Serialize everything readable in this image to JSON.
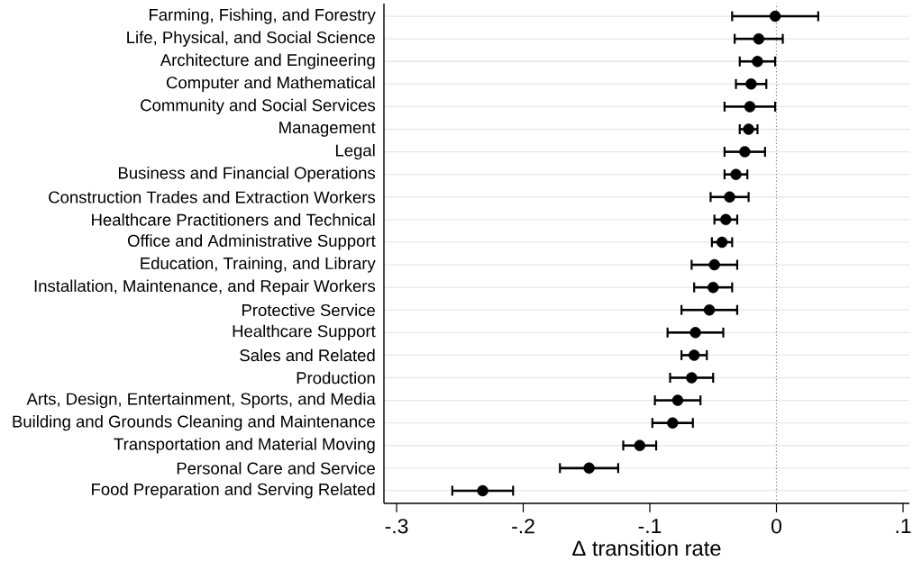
{
  "chart_data": {
    "type": "scatter",
    "orientation": "horizontal",
    "xlabel": "Δ transition rate",
    "categories": [
      "Farming, Fishing, and Forestry",
      "Life, Physical, and Social Science",
      "Architecture and Engineering",
      "Computer and Mathematical",
      "Community and Social Services",
      "Management",
      "Legal",
      "Business and Financial Operations",
      "Construction Trades and Extraction Workers",
      "Healthcare Practitioners and Technical",
      "Office and Administrative Support",
      "Education, Training, and Library",
      "Installation, Maintenance, and Repair Workers",
      "Protective Service",
      "Healthcare Support",
      "Sales and Related",
      "Production",
      "Arts, Design, Entertainment, Sports, and Media",
      "Building and Grounds Cleaning and Maintenance",
      "Transportation and Material Moving",
      "Personal Care and Service",
      "Food Preparation and Serving Related"
    ],
    "values": [
      -0.001,
      -0.014,
      -0.015,
      -0.02,
      -0.021,
      -0.022,
      -0.025,
      -0.032,
      -0.037,
      -0.04,
      -0.043,
      -0.049,
      -0.05,
      -0.053,
      -0.064,
      -0.065,
      -0.067,
      -0.078,
      -0.082,
      -0.108,
      -0.148,
      -0.232
    ],
    "errors": [
      0.034,
      0.019,
      0.014,
      0.012,
      0.02,
      0.007,
      0.016,
      0.009,
      0.015,
      0.009,
      0.008,
      0.018,
      0.015,
      0.022,
      0.022,
      0.01,
      0.017,
      0.018,
      0.016,
      0.013,
      0.023,
      0.024
    ],
    "color": "#000000",
    "marker": "circle",
    "xlim": [
      -0.31,
      0.105
    ],
    "xticks": [
      {
        "value": -0.3,
        "label": "-.3"
      },
      {
        "value": -0.2,
        "label": "-.2"
      },
      {
        "value": -0.1,
        "label": "-.1"
      },
      0,
      {
        "value": 0.1,
        "label": ".1"
      }
    ],
    "grid": "y",
    "ref_lines": [
      {
        "axis": "x",
        "value": 0,
        "color": "#808080",
        "line_style": "dotted"
      }
    ]
  }
}
